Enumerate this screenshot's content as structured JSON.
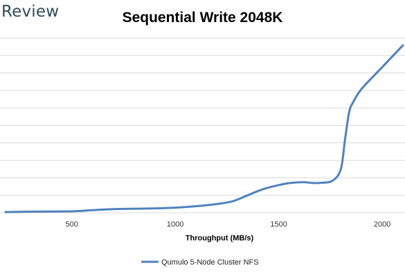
{
  "brand": {
    "logo_text": "Review"
  },
  "chart_data": {
    "type": "line",
    "title": "Sequential Write 2048K",
    "xlabel": "Throughput (MB/s)",
    "ylabel": "",
    "xlim": [
      180,
      2110
    ],
    "ylim": [
      0,
      12
    ],
    "xticks": [
      500,
      1000,
      1500,
      2000
    ],
    "ygridlines": 10,
    "grid": true,
    "legend_position": "bottom",
    "series_color": "#4f81bd",
    "series": [
      {
        "name": "Qumulo 5-Node Cluster NFS",
        "x": [
          180,
          300,
          500,
          600,
          700,
          800,
          900,
          1000,
          1100,
          1200,
          1280,
          1350,
          1420,
          1500,
          1560,
          1620,
          1660,
          1700,
          1760,
          1800,
          1820,
          1840,
          1860,
          1900,
          2000,
          2100
        ],
        "y": [
          0.05,
          0.08,
          0.1,
          0.18,
          0.25,
          0.28,
          0.3,
          0.35,
          0.45,
          0.6,
          0.8,
          1.2,
          1.6,
          1.9,
          2.05,
          2.1,
          2.05,
          2.05,
          2.2,
          3.0,
          5.0,
          6.9,
          7.6,
          8.5,
          10.0,
          11.5
        ]
      }
    ]
  }
}
